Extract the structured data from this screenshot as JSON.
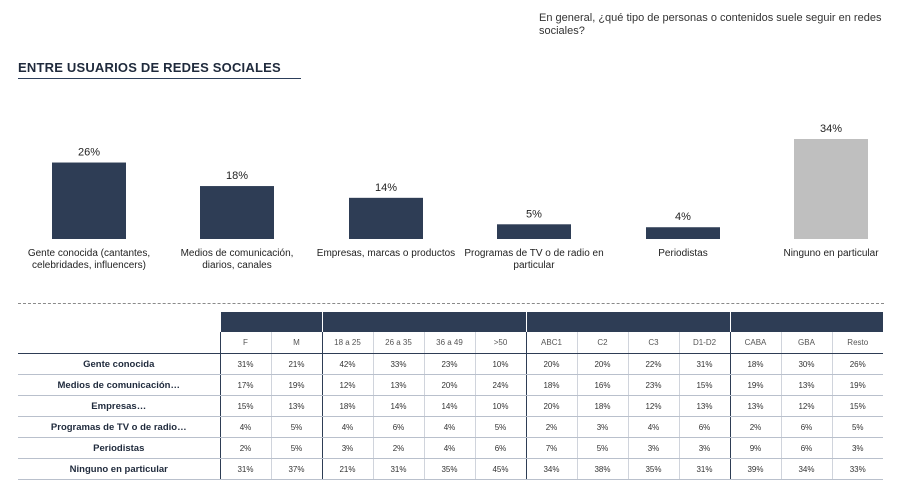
{
  "header": {
    "question": "En general, ¿qué tipo de personas o contenidos suele seguir en redes sociales?",
    "section_title": "ENTRE USUARIOS DE REDES SOCIALES"
  },
  "chart_data": {
    "type": "bar",
    "categories": [
      "Gente conocida (cantantes, celebridades, influencers)",
      "Medios de comunicación, diarios, canales",
      "Empresas, marcas o productos",
      "Programas de TV o de radio en particular",
      "Periodistas",
      "Ninguno en particular"
    ],
    "values": [
      26,
      18,
      14,
      5,
      4,
      34
    ],
    "value_labels": [
      "26%",
      "18%",
      "14%",
      "5%",
      "4%",
      "34%"
    ],
    "colors": [
      "#2e3d55",
      "#2e3d55",
      "#2e3d55",
      "#2e3d55",
      "#2e3d55",
      "#bfbfbf"
    ],
    "ylim": [
      0,
      34
    ],
    "grid": false
  },
  "table": {
    "columns": [
      "F",
      "M",
      "18 a 25",
      "26 a 35",
      "36 a 49",
      ">50",
      "ABC1",
      "C2",
      "C3",
      "D1-D2",
      "CABA",
      "GBA",
      "Resto"
    ],
    "rows": [
      {
        "label": "Gente conocida",
        "values": [
          "31%",
          "21%",
          "42%",
          "33%",
          "23%",
          "10%",
          "20%",
          "20%",
          "22%",
          "31%",
          "18%",
          "30%",
          "26%"
        ]
      },
      {
        "label": "Medios de comunicación…",
        "values": [
          "17%",
          "19%",
          "12%",
          "13%",
          "20%",
          "24%",
          "18%",
          "16%",
          "23%",
          "15%",
          "19%",
          "13%",
          "19%"
        ]
      },
      {
        "label": "Empresas…",
        "values": [
          "15%",
          "13%",
          "18%",
          "14%",
          "14%",
          "10%",
          "20%",
          "18%",
          "12%",
          "13%",
          "13%",
          "12%",
          "15%"
        ]
      },
      {
        "label": "Programas de TV o de radio…",
        "values": [
          "4%",
          "5%",
          "4%",
          "6%",
          "4%",
          "5%",
          "2%",
          "3%",
          "4%",
          "6%",
          "2%",
          "6%",
          "5%"
        ]
      },
      {
        "label": "Periodistas",
        "values": [
          "2%",
          "5%",
          "3%",
          "2%",
          "4%",
          "6%",
          "7%",
          "5%",
          "3%",
          "3%",
          "9%",
          "6%",
          "3%"
        ]
      },
      {
        "label": "Ninguno en particular",
        "values": [
          "31%",
          "37%",
          "21%",
          "31%",
          "35%",
          "45%",
          "34%",
          "38%",
          "35%",
          "31%",
          "39%",
          "34%",
          "33%"
        ]
      }
    ]
  }
}
